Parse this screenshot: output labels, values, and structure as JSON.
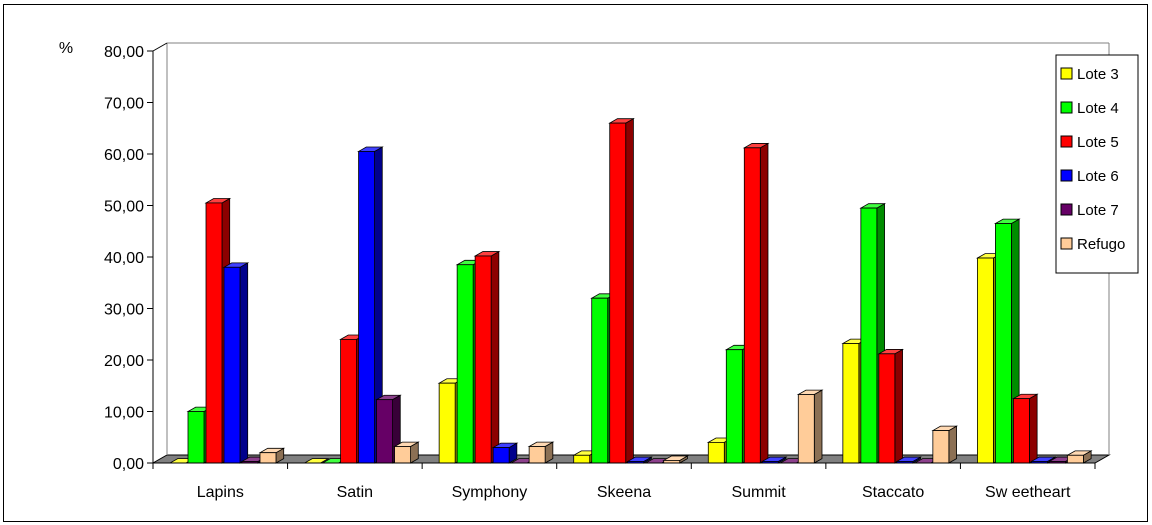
{
  "chart_data": {
    "type": "bar",
    "ylabel": "%",
    "ylim": [
      0,
      80
    ],
    "yticks": [
      "0,00",
      "10,00",
      "20,00",
      "30,00",
      "40,00",
      "50,00",
      "60,00",
      "70,00",
      "80,00"
    ],
    "categories": [
      "Lapins",
      "Satin",
      "Symphony",
      "Skeena",
      "Summit",
      "Staccato",
      "Sw eetheart"
    ],
    "series": [
      {
        "name": "Lote 3",
        "values": [
          0,
          0,
          15.5,
          1.5,
          4.0,
          23.2,
          39.8
        ]
      },
      {
        "name": "Lote 4",
        "values": [
          10.0,
          0,
          38.5,
          32.0,
          22.0,
          49.5,
          46.5
        ]
      },
      {
        "name": "Lote 5",
        "values": [
          50.5,
          24.0,
          40.2,
          66.0,
          61.2,
          21.2,
          12.5
        ]
      },
      {
        "name": "Lote 6",
        "values": [
          38.0,
          60.5,
          3.0,
          0.3,
          0.3,
          0.3,
          0.3
        ]
      },
      {
        "name": "Lote 7",
        "values": [
          0.3,
          12.3,
          0,
          0,
          0,
          0,
          0.3
        ]
      },
      {
        "name": "Refugo",
        "values": [
          2.0,
          3.2,
          3.2,
          0.5,
          13.3,
          6.3,
          1.5
        ]
      }
    ],
    "grid": false,
    "legend_position": "right",
    "colors": {
      "Lote 3": "#ffff00",
      "Lote 4": "#00ff00",
      "Lote 5": "#ff0000",
      "Lote 6": "#0000ff",
      "Lote 7": "#660066",
      "Refugo": "#ffcc99"
    },
    "floor_color": "#808080"
  }
}
